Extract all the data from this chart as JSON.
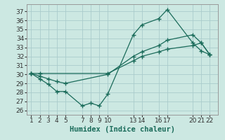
{
  "xlabel": "Humidex (Indice chaleur)",
  "bg_color": "#cce8e2",
  "grid_color": "#aacccc",
  "line_color": "#1a6b5a",
  "xticks": [
    1,
    2,
    3,
    4,
    5,
    7,
    8,
    9,
    10,
    13,
    14,
    16,
    17,
    20,
    21,
    22
  ],
  "yticks": [
    26,
    27,
    28,
    29,
    30,
    31,
    32,
    33,
    34,
    35,
    36,
    37
  ],
  "xlim": [
    0.5,
    23.0
  ],
  "ylim": [
    25.5,
    37.8
  ],
  "line1_x": [
    1,
    2,
    3,
    4,
    5,
    7,
    8,
    9,
    10,
    13,
    14,
    16,
    17,
    20,
    21,
    22
  ],
  "line1_y": [
    30.1,
    29.5,
    28.9,
    28.1,
    28.1,
    26.5,
    26.8,
    26.5,
    27.8,
    34.4,
    35.5,
    36.2,
    37.2,
    33.5,
    32.6,
    32.2
  ],
  "line2_x": [
    1,
    2,
    3,
    4,
    5,
    10,
    13,
    14,
    16,
    17,
    20,
    21,
    22
  ],
  "line2_y": [
    30.1,
    29.8,
    29.5,
    29.2,
    29.0,
    30.0,
    32.0,
    32.5,
    33.2,
    33.8,
    34.4,
    33.5,
    32.2
  ],
  "line3_x": [
    1,
    2,
    10,
    13,
    14,
    16,
    17,
    20,
    21,
    22
  ],
  "line3_y": [
    30.1,
    30.1,
    30.1,
    31.5,
    32.0,
    32.5,
    32.8,
    33.2,
    33.5,
    32.2
  ],
  "tick_fontsize": 6.5,
  "xlabel_fontsize": 7.5,
  "figsize": [
    3.2,
    2.0
  ],
  "dpi": 100
}
